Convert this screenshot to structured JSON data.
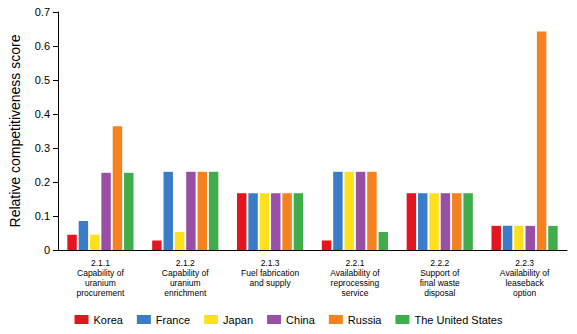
{
  "chart_data": {
    "type": "bar",
    "y_label": "Relative competitiveness score",
    "categories": [
      "2.1.1\nCapability of\nuranium\nprocurement",
      "2.1.2\nCapability of\nuranium\nenrichment",
      "2.1.3\nFuel fabrication\nand supply",
      "2.2.1\nAvailability of\nreprocessing\nservice",
      "2.2.2\nSupport of\nfinal waste\ndisposal",
      "2.2.3\nAvailability of\nleaseback\noption"
    ],
    "series": [
      {
        "name": "Korea",
        "color": "#e3151f",
        "values": [
          0.045,
          0.028,
          0.167,
          0.028,
          0.167,
          0.071
        ]
      },
      {
        "name": "France",
        "color": "#3b7cc8",
        "values": [
          0.085,
          0.23,
          0.167,
          0.23,
          0.167,
          0.071
        ]
      },
      {
        "name": "Japan",
        "color": "#ffe01e",
        "values": [
          0.045,
          0.053,
          0.167,
          0.23,
          0.167,
          0.071
        ]
      },
      {
        "name": "China",
        "color": "#9a4fa6",
        "values": [
          0.227,
          0.23,
          0.167,
          0.23,
          0.167,
          0.071
        ]
      },
      {
        "name": "Russia",
        "color": "#f5821f",
        "values": [
          0.364,
          0.23,
          0.167,
          0.23,
          0.167,
          0.643
        ]
      },
      {
        "name": "The United States",
        "color": "#40ad4b",
        "values": [
          0.227,
          0.23,
          0.167,
          0.053,
          0.167,
          0.071
        ]
      }
    ],
    "ylim": [
      0,
      0.7
    ],
    "yticks": [
      0,
      0.1,
      0.2,
      0.3,
      0.4,
      0.5,
      0.6,
      0.7
    ],
    "grid": false,
    "legend": "bottom"
  }
}
